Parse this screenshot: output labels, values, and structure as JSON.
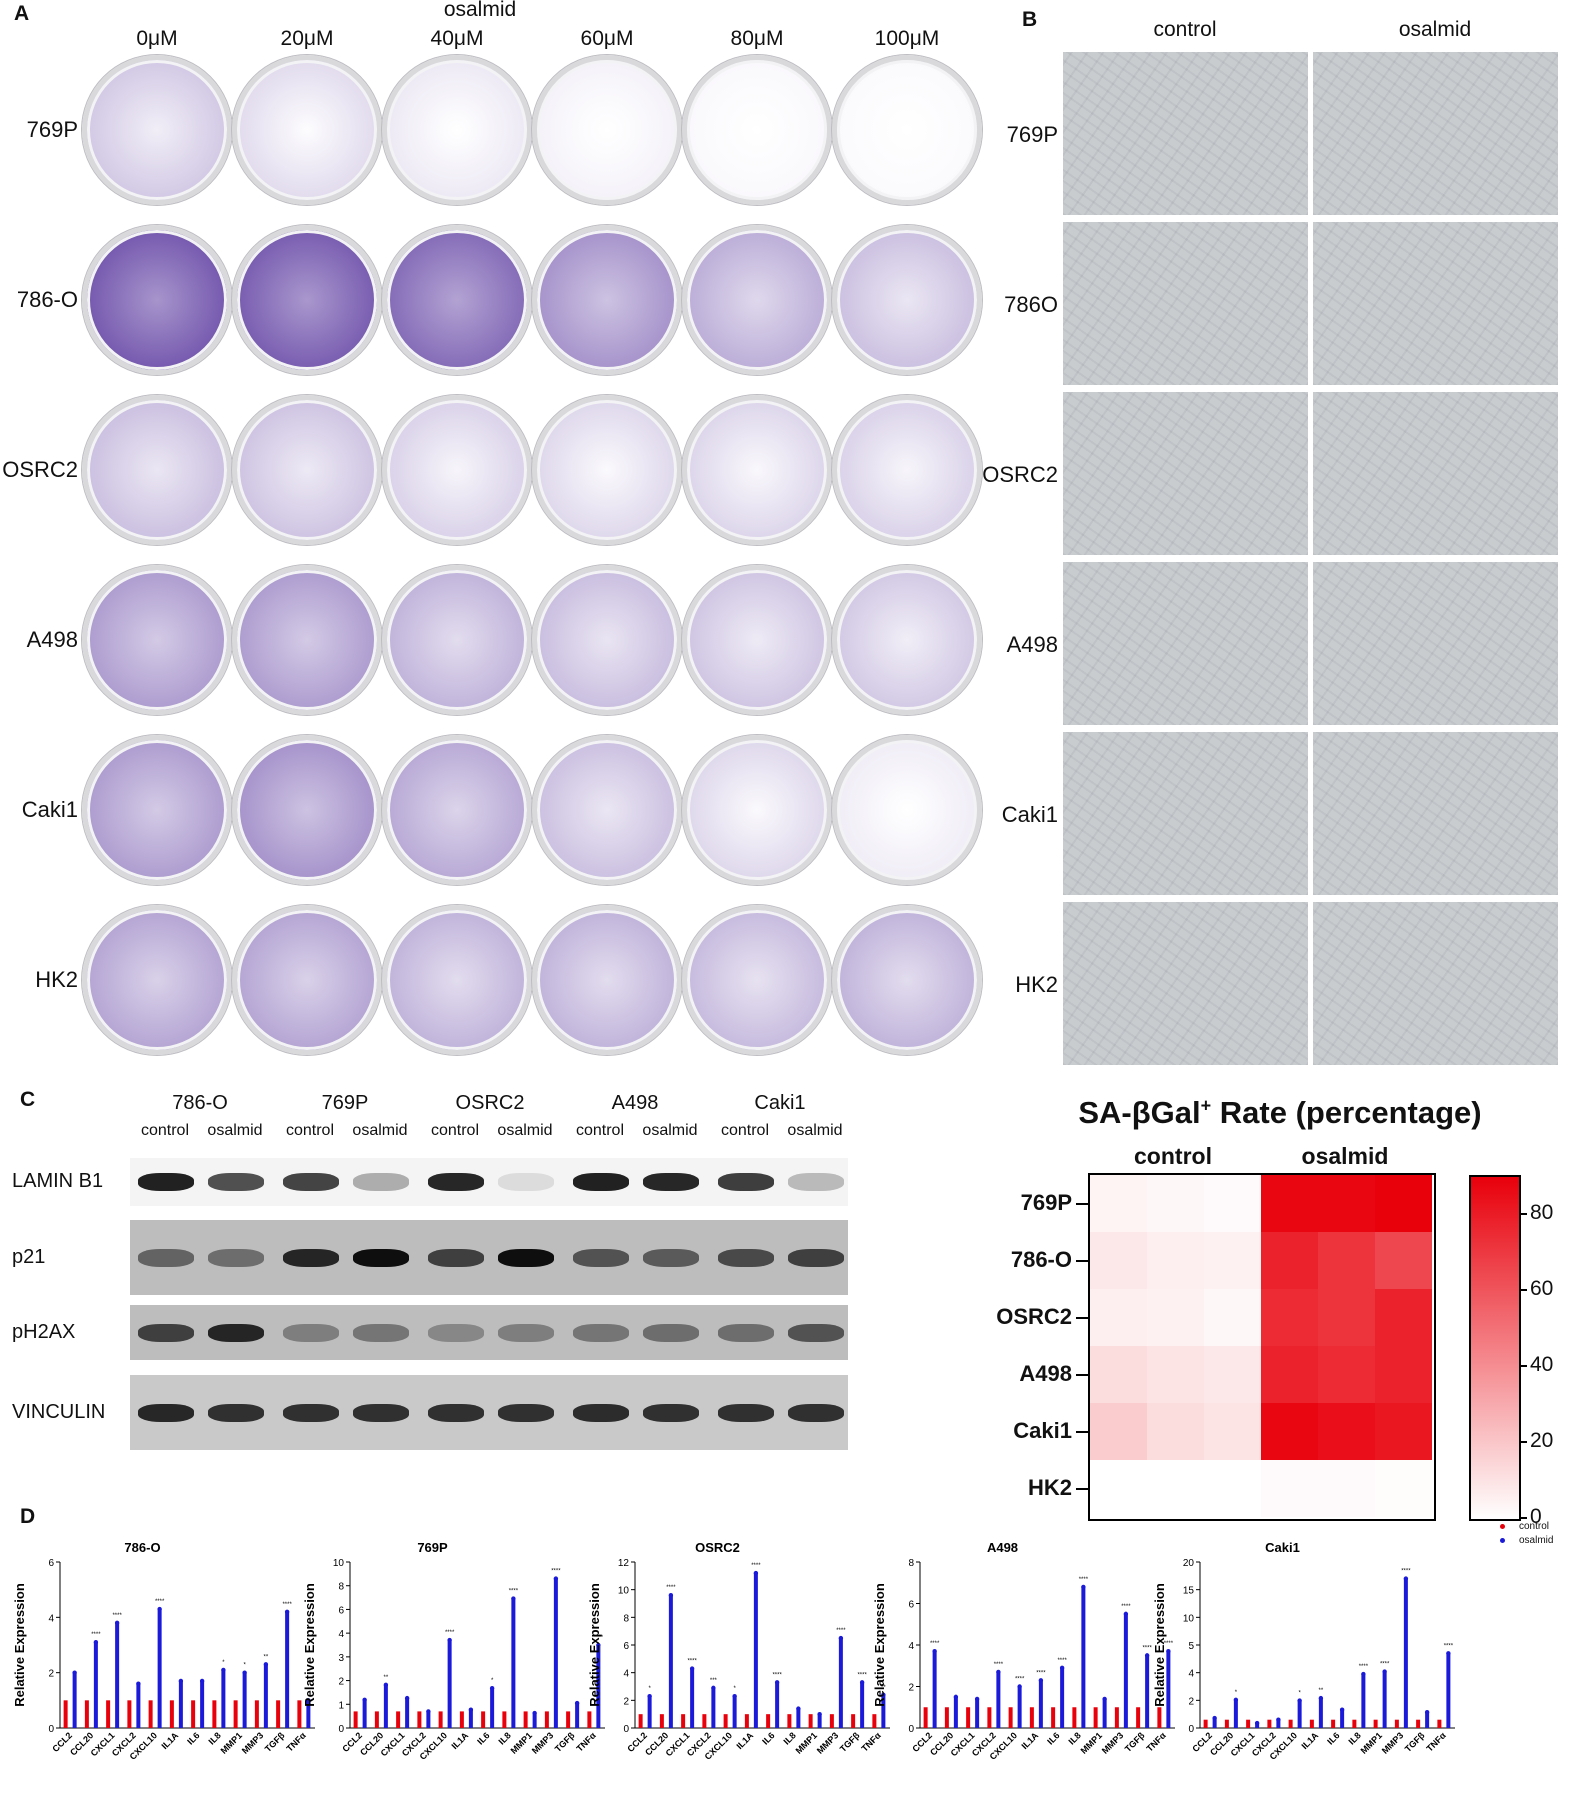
{
  "panelA": {
    "label": "A",
    "header": "osalmid",
    "concentrations": [
      "0μM",
      "20μM",
      "40μM",
      "60μM",
      "80μM",
      "100μM"
    ],
    "rows": [
      {
        "name": "769P",
        "stain": [
          0.3,
          0.2,
          0.12,
          0.07,
          0.04,
          0.03
        ]
      },
      {
        "name": "786-O",
        "stain": [
          0.92,
          0.9,
          0.82,
          0.6,
          0.45,
          0.35
        ]
      },
      {
        "name": "OSRC2",
        "stain": [
          0.35,
          0.33,
          0.25,
          0.22,
          0.23,
          0.25
        ]
      },
      {
        "name": "A498",
        "stain": [
          0.55,
          0.55,
          0.42,
          0.36,
          0.32,
          0.3
        ]
      },
      {
        "name": "Caki1",
        "stain": [
          0.55,
          0.6,
          0.48,
          0.35,
          0.22,
          0.1
        ]
      },
      {
        "name": "HK2",
        "stain": [
          0.5,
          0.5,
          0.42,
          0.42,
          0.38,
          0.42
        ]
      }
    ],
    "stain_color": "#6a4ba8"
  },
  "panelB": {
    "label": "B",
    "columns": [
      "control",
      "osalmid"
    ],
    "rows": [
      "769P",
      "786O",
      "OSRC2",
      "A498",
      "Caki1",
      "HK2"
    ]
  },
  "panelC": {
    "label": "C",
    "cell_lines": [
      "786-O",
      "769P",
      "OSRC2",
      "A498",
      "Caki1"
    ],
    "conditions": [
      "control",
      "osalmid"
    ],
    "proteins": [
      {
        "name": "LAMIN B1",
        "bands": [
          0.9,
          0.7,
          0.75,
          0.3,
          0.88,
          0.1,
          0.9,
          0.88,
          0.78,
          0.25
        ]
      },
      {
        "name": "p21",
        "bands": [
          0.5,
          0.45,
          0.85,
          0.98,
          0.7,
          0.98,
          0.6,
          0.55,
          0.65,
          0.7
        ]
      },
      {
        "name": "pH2AX",
        "bands": [
          0.7,
          0.85,
          0.35,
          0.4,
          0.3,
          0.35,
          0.4,
          0.45,
          0.45,
          0.6
        ]
      },
      {
        "name": "VINCULIN",
        "bands": [
          0.85,
          0.8,
          0.8,
          0.8,
          0.8,
          0.8,
          0.82,
          0.8,
          0.8,
          0.8
        ]
      }
    ]
  },
  "heatmap": {
    "title_main": "SA-βGal",
    "title_sup": "+",
    "title_rest": " Rate (percentage)",
    "columns": [
      "control",
      "osalmid"
    ],
    "rows": [
      "769P",
      "786-O",
      "OSRC2",
      "A498",
      "Caki1",
      "HK2"
    ],
    "values": [
      [
        4,
        3,
        2,
        88,
        88,
        90
      ],
      [
        8,
        6,
        5,
        78,
        72,
        65
      ],
      [
        6,
        5,
        3,
        75,
        72,
        78
      ],
      [
        12,
        10,
        8,
        78,
        75,
        78
      ],
      [
        18,
        12,
        10,
        88,
        85,
        82
      ],
      [
        0,
        0,
        0,
        2,
        2,
        1
      ]
    ],
    "scale_ticks": [
      "80",
      "60",
      "40",
      "20",
      "0"
    ],
    "scale_max": 90,
    "color_high": "#e8000b"
  },
  "panelD": {
    "label": "D",
    "legend": {
      "control": "control",
      "osalmid": "osalmid"
    },
    "control_color": "#e8000b",
    "osalmid_color": "#1a1ad8",
    "ylabel": "Relative Expression",
    "genes": [
      "CCL2",
      "CCL20",
      "CXCL1",
      "CXCL2",
      "CXCL10",
      "IL1A",
      "IL6",
      "IL8",
      "MMP1",
      "MMP3",
      "TGFβ",
      "TNFα"
    ],
    "charts": [
      {
        "title": "786-O",
        "yticks": [
          "0",
          "2",
          "4",
          "6"
        ],
        "ymax": 6,
        "break": false,
        "genes": [
          "CCL2",
          "CCL20",
          "CXCL1",
          "CXCL2",
          "CXCL10",
          "IL1A",
          "IL6",
          "IL8",
          "MMP1",
          "MMP3",
          "TGFβ",
          "TNFα"
        ],
        "values": [
          2.0,
          3.1,
          3.8,
          1.6,
          4.3,
          1.7,
          1.7,
          2.1,
          2.0,
          2.3,
          4.2,
          1.0
        ],
        "stars": [
          "",
          "****",
          "****",
          "",
          "****",
          "",
          "",
          "*",
          "*",
          "**",
          "****",
          ""
        ]
      },
      {
        "title": "769P",
        "yticks": [
          "0",
          "1",
          "2",
          "3",
          "4",
          "6",
          "8",
          "10"
        ],
        "ymax": 10,
        "break": true,
        "genes": [
          "CCL2",
          "CCL20",
          "CXCL1",
          "CXCL2",
          "CXCL10",
          "IL1A",
          "IL6",
          "IL8",
          "MMP1",
          "MMP3",
          "TGFβ",
          "TNFα"
        ],
        "values": [
          1.7,
          2.6,
          1.8,
          1.0,
          5.3,
          1.1,
          2.4,
          7.8,
          0.9,
          9.0,
          1.5,
          5.0
        ],
        "stars": [
          "",
          "**",
          "",
          "",
          "****",
          "",
          "*",
          "****",
          "",
          "****",
          "",
          "****"
        ]
      },
      {
        "title": "OSRC2",
        "yticks": [
          "0",
          "2",
          "4",
          "6",
          "8",
          "10",
          "12"
        ],
        "ymax": 12,
        "break": true,
        "genes": [
          "CCL2",
          "CCL20",
          "CXCL1",
          "CXCL2",
          "CXCL10",
          "IL1A",
          "IL6",
          "IL8",
          "MMP1",
          "MMP3",
          "TGFβ",
          "TNFα"
        ],
        "values": [
          2.3,
          9.6,
          4.3,
          2.9,
          2.3,
          11.2,
          3.3,
          1.4,
          1.0,
          6.5,
          3.3,
          2.4
        ],
        "stars": [
          "*",
          "****",
          "****",
          "***",
          "*",
          "****",
          "****",
          "",
          "",
          "****",
          "****",
          "**"
        ]
      },
      {
        "title": "A498",
        "yticks": [
          "0",
          "2",
          "4",
          "6",
          "8"
        ],
        "ymax": 8,
        "break": false,
        "genes": [
          "CCL2",
          "CCL20",
          "CXCL1",
          "CXCL2",
          "CXCL10",
          "IL1A",
          "IL6",
          "IL8",
          "MMP1",
          "MMP3",
          "TGFβ",
          "TNFα"
        ],
        "values": [
          3.7,
          1.5,
          1.4,
          2.7,
          2.0,
          2.3,
          2.9,
          6.8,
          1.4,
          5.5,
          3.5,
          3.7
        ],
        "stars": [
          "****",
          "",
          "",
          "****",
          "****",
          "****",
          "****",
          "****",
          "",
          "****",
          "****",
          "****"
        ]
      },
      {
        "title": "Caki1",
        "yticks": [
          "0",
          "2",
          "4",
          "5",
          "10",
          "15",
          "20"
        ],
        "ymax": 20,
        "break": true,
        "genes": [
          "CCL2",
          "CCL20",
          "CXCL1",
          "CXCL2",
          "CXCL10",
          "IL1A",
          "IL6",
          "IL8",
          "MMP1",
          "MMP3",
          "TGFβ",
          "TNFα"
        ],
        "values": [
          1.2,
          3.4,
          0.6,
          1.0,
          3.3,
          3.6,
          2.2,
          6.5,
          6.8,
          18.0,
          1.9,
          9.0
        ],
        "stars": [
          "",
          "*",
          "",
          "",
          "*",
          "**",
          "",
          "****",
          "****",
          "****",
          "",
          "****"
        ]
      }
    ]
  }
}
